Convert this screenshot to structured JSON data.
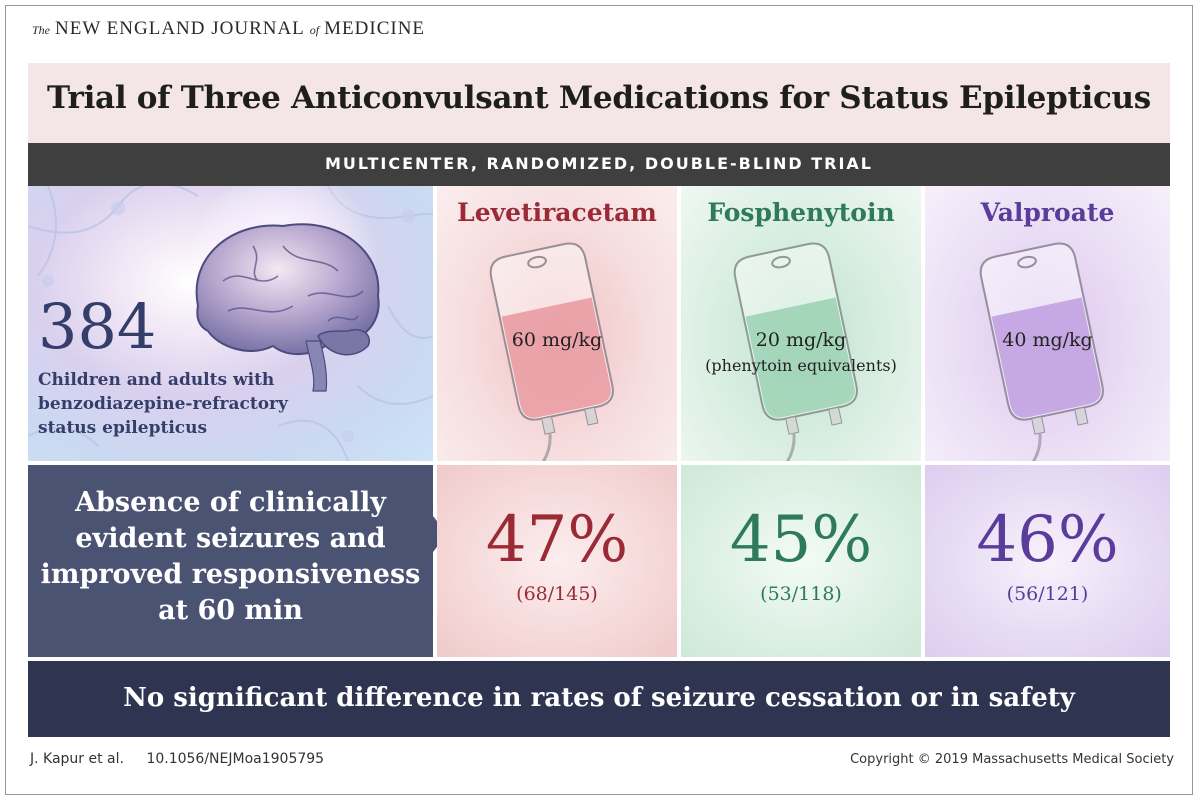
{
  "header": {
    "journal_the": "The",
    "journal_main": "NEW ENGLAND JOURNAL",
    "journal_of": "of",
    "journal_end": "MEDICINE"
  },
  "title": "Trial of Three Anticonvulsant Medications for Status Epilepticus",
  "subtitle": "MULTICENTER, RANDOMIZED, DOUBLE-BLIND TRIAL",
  "population": {
    "count": "384",
    "description_lines": [
      "Children and adults with",
      "benzodiazepine-refractory",
      "status epilepticus"
    ]
  },
  "outcome_lines": [
    "Absence of clinically",
    "evident seizures and",
    "improved responsiveness",
    "at 60 min"
  ],
  "arms": [
    {
      "name": "Levetiracetam",
      "dose": "60 mg/kg",
      "dose_note": "",
      "percent": "47%",
      "ratio": "(68/145)",
      "color": "#9c2a36",
      "tint": "#e58d94"
    },
    {
      "name": "Fosphenytoin",
      "dose": "20 mg/kg",
      "dose_note": "(phenytoin equivalents)",
      "percent": "45%",
      "ratio": "(53/118)",
      "color": "#2e7a5a",
      "tint": "#8ccaa6"
    },
    {
      "name": "Valproate",
      "dose": "40 mg/kg",
      "dose_note": "",
      "percent": "46%",
      "ratio": "(56/121)",
      "color": "#5a3c9a",
      "tint": "#b48fdc"
    }
  ],
  "conclusion": "No significant difference in rates of seizure cessation or in safety",
  "footer": {
    "authors": "J. Kapur et al.",
    "doi": "10.1056/NEJMoa1905795",
    "copyright": "Copyright © 2019 Massachusetts Medical Society"
  }
}
